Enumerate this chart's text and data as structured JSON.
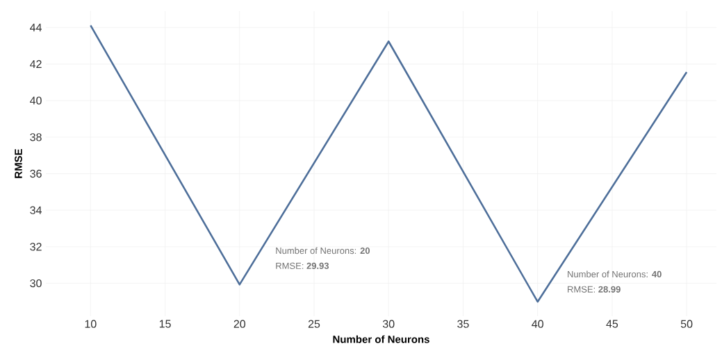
{
  "chart_data": {
    "type": "line",
    "xlabel": "Number of Neurons",
    "ylabel": "RMSE",
    "x": [
      10,
      20,
      30,
      40,
      50
    ],
    "series": [
      {
        "color": "#4e6f9a",
        "values": [
          44.12,
          29.93,
          43.24,
          28.99,
          41.56
        ]
      }
    ],
    "xlim": [
      7,
      52
    ],
    "ylim": [
      28.2,
      44.9
    ],
    "xticks": [
      10,
      15,
      20,
      25,
      30,
      35,
      40,
      45,
      50
    ],
    "yticks": [
      30,
      32,
      34,
      36,
      38,
      40,
      42,
      44
    ],
    "grid": true,
    "marker": "none",
    "line_style": "solid",
    "annotations": [
      "Number of Neurons: **20**",
      "RMSE: **29.93**",
      "Number of Neurons: **40**",
      "RMSE: **28.99**"
    ]
  }
}
